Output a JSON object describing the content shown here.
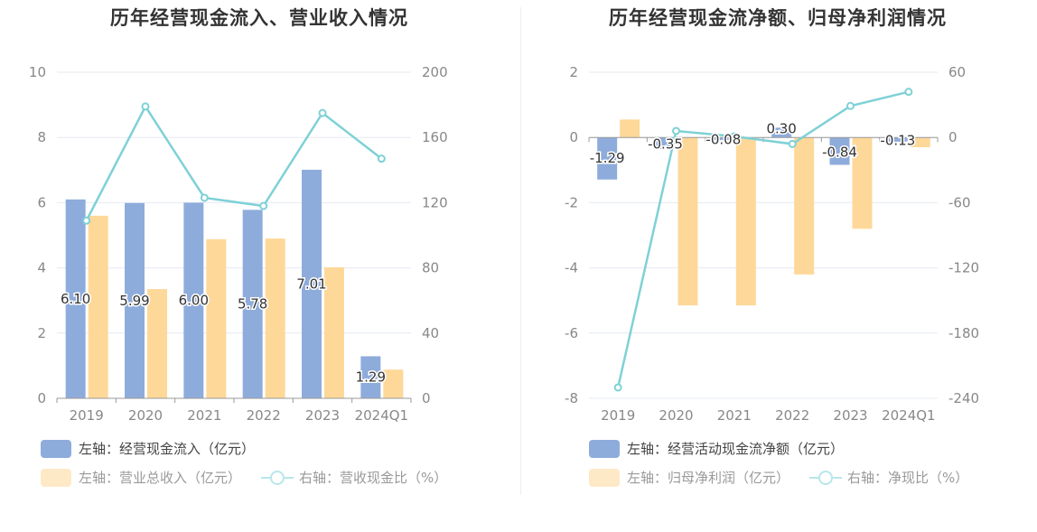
{
  "colors": {
    "bar_blue": "#8eacdb",
    "bar_orange": "#fed899",
    "line_teal": "#7fd1d6",
    "grid": "#e6e9f2",
    "axis_text": "#888888"
  },
  "chart_data": [
    {
      "type": "bar",
      "title": "历年经营现金流入、营业收入情况",
      "categories": [
        "2019",
        "2020",
        "2021",
        "2022",
        "2023",
        "2024Q1"
      ],
      "y_left_ticks": [
        "0",
        "2",
        "4",
        "6",
        "8",
        "10"
      ],
      "y_right_ticks": [
        "0",
        "40",
        "80",
        "120",
        "160",
        "200"
      ],
      "ylim_left": [
        0,
        10
      ],
      "ylim_right": [
        0,
        200
      ],
      "grid": true,
      "legend_position": "bottom-left",
      "series": [
        {
          "name": "左轴：经营现金流入（亿元）",
          "type": "bar",
          "axis": "left",
          "color": "#8eacdb",
          "values": [
            6.1,
            5.99,
            6.0,
            5.78,
            7.01,
            1.29
          ],
          "labels": [
            "6.10",
            "5.99",
            "6.00",
            "5.78",
            "7.01",
            "1.29"
          ]
        },
        {
          "name": "左轴：营业总收入（亿元）",
          "type": "bar",
          "axis": "left",
          "color": "#fed899",
          "values": [
            5.6,
            3.35,
            4.88,
            4.9,
            4.02,
            0.88
          ]
        },
        {
          "name": "右轴：营收现金比（%）",
          "type": "line",
          "axis": "right",
          "color": "#7fd1d6",
          "values": [
            109,
            179,
            123,
            118,
            175,
            147
          ]
        }
      ]
    },
    {
      "type": "bar",
      "title": "历年经营现金流净额、归母净利润情况",
      "categories": [
        "2019",
        "2020",
        "2021",
        "2022",
        "2023",
        "2024Q1"
      ],
      "y_left_ticks": [
        "-8",
        "-6",
        "-4",
        "-2",
        "0",
        "2"
      ],
      "y_right_ticks": [
        "-240",
        "-180",
        "-120",
        "-60",
        "0",
        "60"
      ],
      "ylim_left": [
        -8,
        2
      ],
      "ylim_right": [
        -240,
        60
      ],
      "grid": true,
      "legend_position": "bottom-left",
      "series": [
        {
          "name": "左轴：经营活动现金流净额（亿元）",
          "type": "bar",
          "axis": "left",
          "color": "#8eacdb",
          "values": [
            -1.29,
            -0.35,
            -0.08,
            0.3,
            -0.84,
            -0.13
          ],
          "labels": [
            "-1.29",
            "-0.35",
            "-0.08",
            "0.30",
            "-0.84",
            "-0.13"
          ]
        },
        {
          "name": "左轴：归母净利润（亿元）",
          "type": "bar",
          "axis": "left",
          "color": "#fed899",
          "values": [
            0.55,
            -5.15,
            -5.15,
            -4.2,
            -2.8,
            -0.3
          ]
        },
        {
          "name": "右轴：净现比（%）",
          "type": "line",
          "axis": "right",
          "color": "#7fd1d6",
          "values": [
            -230,
            6,
            1,
            -6,
            29,
            42
          ]
        }
      ]
    }
  ]
}
